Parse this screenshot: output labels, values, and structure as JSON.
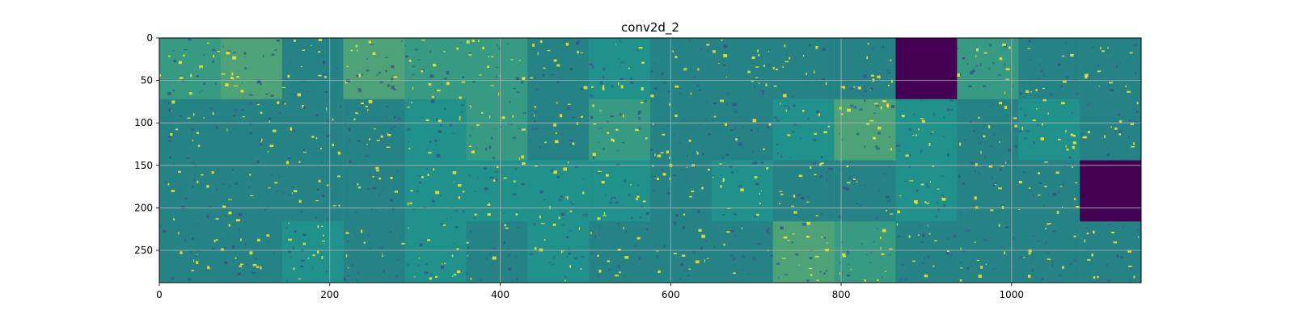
{
  "chart_data": {
    "type": "heatmap",
    "title": "conv2d_2",
    "xlabel": "",
    "ylabel": "",
    "xlim": [
      0,
      1152
    ],
    "ylim": [
      288,
      0
    ],
    "xticks": [
      0,
      200,
      400,
      600,
      800,
      1000
    ],
    "yticks": [
      0,
      50,
      100,
      150,
      200,
      250
    ],
    "grid": true,
    "colormap": "viridis",
    "tile_grid": {
      "rows": 4,
      "cols": 16
    },
    "tile_intensity": [
      [
        0.55,
        0.6,
        0.45,
        0.6,
        0.55,
        0.55,
        0.45,
        0.5,
        0.45,
        0.45,
        0.45,
        0.45,
        0.0,
        0.55,
        0.45,
        0.45
      ],
      [
        0.45,
        0.45,
        0.45,
        0.45,
        0.5,
        0.55,
        0.45,
        0.55,
        0.45,
        0.45,
        0.5,
        0.6,
        0.5,
        0.45,
        0.5,
        0.45
      ],
      [
        0.45,
        0.45,
        0.45,
        0.45,
        0.5,
        0.5,
        0.5,
        0.5,
        0.45,
        0.5,
        0.45,
        0.45,
        0.5,
        0.45,
        0.45,
        0.0
      ],
      [
        0.45,
        0.45,
        0.5,
        0.45,
        0.5,
        0.45,
        0.5,
        0.45,
        0.45,
        0.45,
        0.6,
        0.55,
        0.45,
        0.45,
        0.45,
        0.45
      ]
    ],
    "colors": {
      "low": "#440154",
      "mid": "#21918c",
      "high": "#fde725",
      "grid": "#b0b0b0"
    }
  }
}
